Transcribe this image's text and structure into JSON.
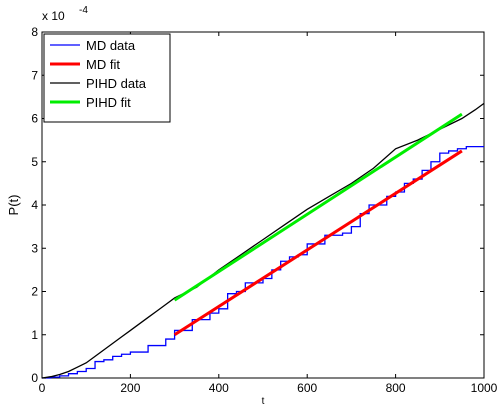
{
  "chart_data": {
    "type": "line",
    "title": "",
    "xlabel": "t",
    "ylabel": "P(t)",
    "xlim": [
      0,
      1000
    ],
    "ylim": [
      0,
      8
    ],
    "y_scale_label": "x 10",
    "y_scale_exponent": "-4",
    "x_ticks": [
      0,
      200,
      400,
      600,
      800,
      1000
    ],
    "y_ticks": [
      0,
      1,
      2,
      3,
      4,
      5,
      6,
      7,
      8
    ],
    "grid": false,
    "legend_position": "top-left",
    "series": [
      {
        "name": "MD data",
        "color": "#0000ff",
        "style": "step",
        "x": [
          0,
          20,
          40,
          60,
          80,
          100,
          120,
          140,
          160,
          180,
          200,
          220,
          240,
          260,
          280,
          300,
          320,
          340,
          360,
          380,
          400,
          420,
          440,
          460,
          480,
          500,
          520,
          540,
          560,
          580,
          600,
          620,
          640,
          660,
          680,
          700,
          720,
          740,
          760,
          780,
          800,
          820,
          840,
          860,
          880,
          900,
          920,
          940,
          960,
          980,
          1000
        ],
        "y": [
          0.0,
          0.02,
          0.05,
          0.1,
          0.15,
          0.22,
          0.38,
          0.42,
          0.5,
          0.55,
          0.6,
          0.6,
          0.75,
          0.75,
          0.9,
          1.1,
          1.1,
          1.35,
          1.35,
          1.5,
          1.6,
          1.95,
          2.0,
          2.2,
          2.2,
          2.3,
          2.5,
          2.7,
          2.8,
          2.85,
          3.1,
          3.1,
          3.3,
          3.3,
          3.35,
          3.5,
          3.8,
          4.0,
          4.0,
          4.2,
          4.3,
          4.5,
          4.6,
          4.8,
          5.0,
          5.2,
          5.25,
          5.3,
          5.35,
          5.35,
          5.35
        ]
      },
      {
        "name": "MD fit",
        "color": "#ff0000",
        "style": "line",
        "x": [
          300,
          950
        ],
        "y": [
          1.0,
          5.25
        ]
      },
      {
        "name": "PIHD data",
        "color": "#000000",
        "style": "line",
        "x": [
          0,
          20,
          40,
          60,
          80,
          100,
          120,
          140,
          160,
          180,
          200,
          220,
          240,
          260,
          280,
          300,
          350,
          400,
          450,
          500,
          550,
          600,
          650,
          700,
          750,
          800,
          850,
          900,
          950,
          980,
          1000
        ],
        "y": [
          0.0,
          0.03,
          0.08,
          0.15,
          0.25,
          0.35,
          0.5,
          0.65,
          0.8,
          0.95,
          1.1,
          1.25,
          1.4,
          1.55,
          1.7,
          1.85,
          2.1,
          2.5,
          2.85,
          3.2,
          3.55,
          3.9,
          4.2,
          4.5,
          4.85,
          5.3,
          5.5,
          5.75,
          6.0,
          6.2,
          6.35
        ]
      },
      {
        "name": "PIHD fit",
        "color": "#00ee00",
        "style": "line",
        "x": [
          300,
          950
        ],
        "y": [
          1.8,
          6.1
        ]
      }
    ]
  }
}
